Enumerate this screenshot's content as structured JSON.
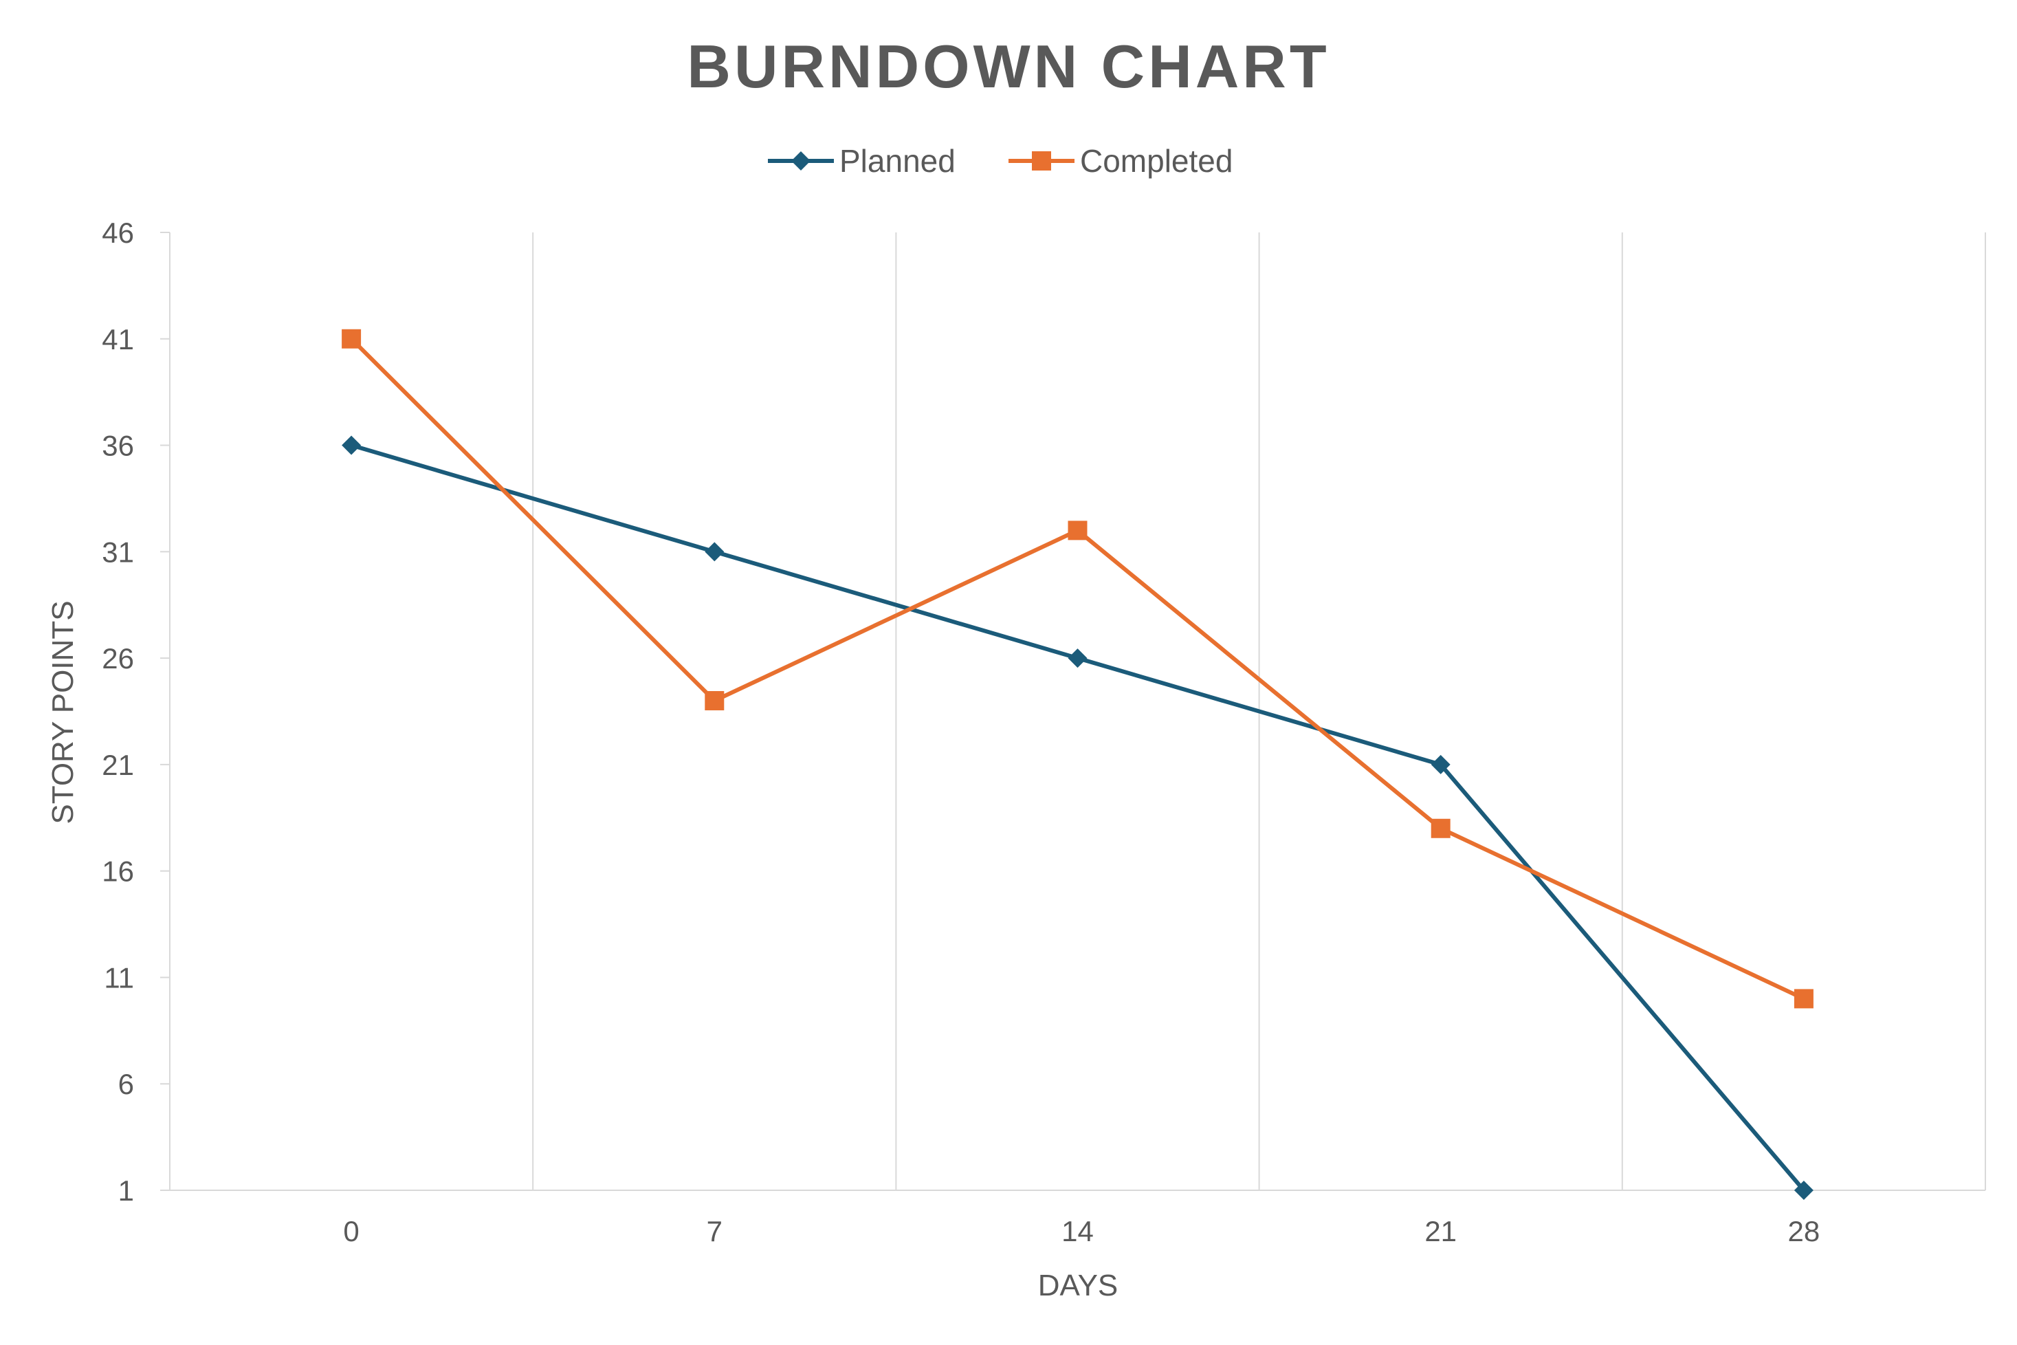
{
  "chart_data": {
    "type": "line",
    "title": "BURNDOWN CHART",
    "xlabel": "DAYS",
    "ylabel": "STORY POINTS",
    "x": [
      0,
      7,
      14,
      21,
      28
    ],
    "xlim": [
      -3.5,
      31.5
    ],
    "ylim": [
      1,
      46
    ],
    "y_ticks": [
      1,
      6,
      11,
      16,
      21,
      26,
      31,
      36,
      41,
      46
    ],
    "grid": "vertical",
    "legend": "top",
    "series": [
      {
        "name": "Planned",
        "values": [
          36,
          31,
          26,
          21,
          1
        ],
        "color": "#1B5B7A",
        "marker": "diamond"
      },
      {
        "name": "Completed",
        "values": [
          41,
          24,
          32,
          18,
          10
        ],
        "color": "#E8702F",
        "marker": "square"
      }
    ]
  }
}
